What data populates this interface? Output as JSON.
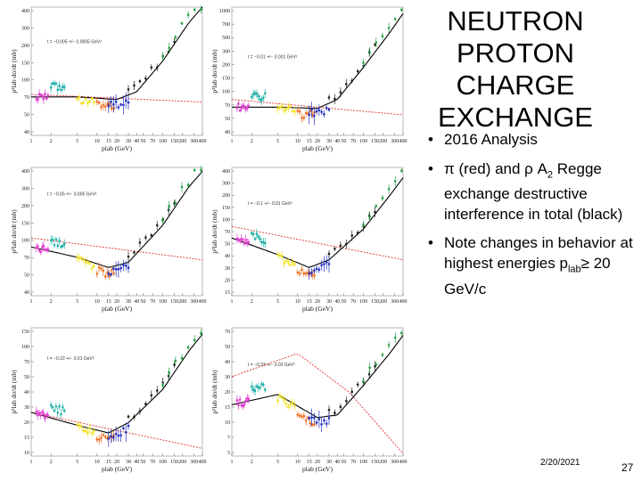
{
  "title_lines": [
    "NEUTRON",
    "PROTON",
    "CHARGE",
    "EXCHANGE"
  ],
  "bullets": {
    "b1": "2016 Analysis",
    "b2": {
      "pi": "π",
      "pre": " (red) and ",
      "rho": "ρ",
      "a2": " A",
      "sub": "2",
      "rest": " Regge exchange destructive interference in total (black)"
    },
    "b3": {
      "pre": "Note changes in behavior at highest energies p",
      "sub": "lab",
      "geq": "≥",
      "post": "20 GeV/c"
    }
  },
  "footer": {
    "date": "2/20/2021",
    "page": "27"
  },
  "colors": {
    "total_curve": "#000000",
    "pi_exchange": "#e03030",
    "data_magenta": "#e040d0",
    "data_cyan": "#20b0a8",
    "data_yellow": "#f0e020",
    "data_orange": "#f07020",
    "data_blue": "#2030c0",
    "data_black": "#202020",
    "data_green": "#20a040"
  },
  "panels": [
    {
      "annotation": "t = −0.005 +/− 0.0005 GeV²",
      "yticks": [
        "400",
        "300",
        "200",
        "150",
        "100",
        "70",
        "50",
        "40"
      ],
      "xlabel": "plab (GeV)",
      "ylabel": "p²lab dσ/dt (mb)"
    },
    {
      "annotation": "t = −0.01 +/− 0.001 GeV²",
      "yticks": [
        "1000",
        "700",
        "500",
        "300",
        "200",
        "150",
        "100",
        "70",
        "50",
        "40"
      ],
      "xlabel": "plab (GeV)",
      "ylabel": "p²lab dσ/dt (mb)"
    },
    {
      "annotation": "t = −0.05 +/− 0.005 GeV²",
      "yticks": [
        "400",
        "300",
        "200",
        "150",
        "100",
        "70",
        "50",
        "40"
      ],
      "xlabel": "plab (GeV)",
      "ylabel": "p²lab dσ/dt (mb)"
    },
    {
      "annotation": "t = −0.1 +/− 0.01 GeV²",
      "yticks": [
        "400",
        "300",
        "200",
        "150",
        "100",
        "70",
        "50",
        "40",
        "30",
        "20",
        "15"
      ],
      "xlabel": "plab (GeV)",
      "ylabel": "p²lab dσ/dt (mb)"
    },
    {
      "annotation": "t = −0.22 +/− 0.01 GeV²",
      "yticks": [
        "150",
        "100",
        "70",
        "50",
        "40",
        "30",
        "20",
        "15",
        "10"
      ],
      "xlabel": "plab (GeV)",
      "ylabel": "p²lab dσ/dt (mb)"
    },
    {
      "annotation": "t = −0.33 +/− 0.03 GeV²",
      "yticks": [
        "70",
        "50",
        "40",
        "30",
        "20",
        "15",
        "10",
        "7",
        "5"
      ],
      "xlabel": "plab (GeV)",
      "ylabel": "p²lab dσ/dt (mb)"
    }
  ],
  "xticks": [
    "1",
    "2",
    "5",
    "10",
    "15",
    "20",
    "30",
    "40",
    "50",
    "70",
    "100",
    "150",
    "200",
    "300",
    "400"
  ]
}
